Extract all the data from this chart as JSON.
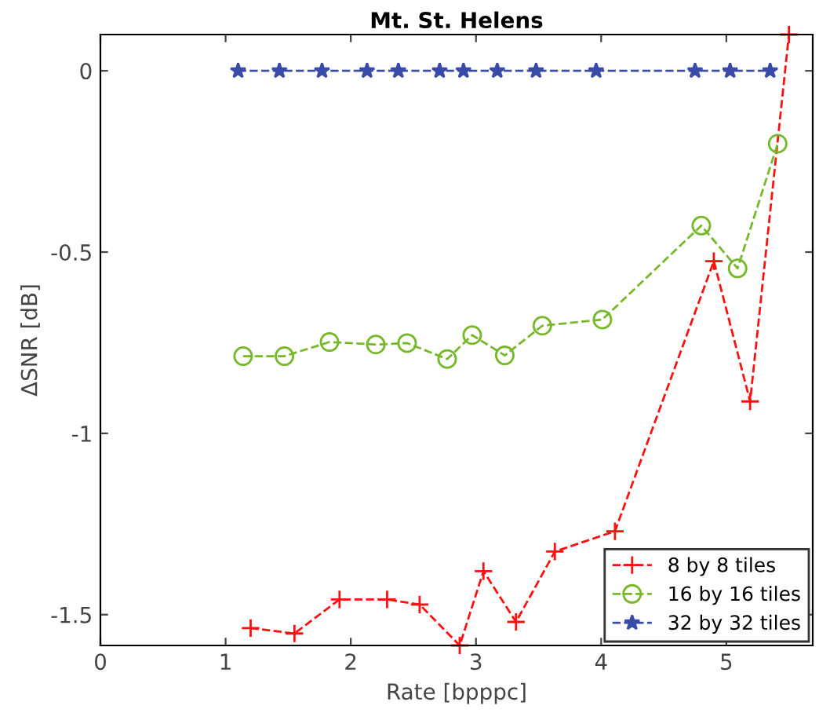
{
  "chart_data": {
    "type": "line",
    "title": "Mt. St. Helens",
    "xlabel": "Rate [bpppc]",
    "ylabel": "ΔSNR [dB]",
    "xlim": [
      0,
      5.69
    ],
    "ylim": [
      -1.585,
      0.1
    ],
    "xticks": [
      0,
      1,
      2,
      3,
      4,
      5
    ],
    "yticks": [
      -1.5,
      -1,
      -0.5,
      0
    ],
    "grid": false,
    "legend": "bottom right",
    "line_style": "dashed",
    "series": [
      {
        "name": "8 by 8 tiles",
        "color": "#ff1010",
        "marker": "cross",
        "x": [
          1.2,
          1.55,
          1.91,
          2.29,
          2.55,
          2.87,
          3.06,
          3.32,
          3.63,
          4.11,
          4.9,
          5.19,
          5.5
        ],
        "values": [
          -1.537,
          -1.552,
          -1.458,
          -1.458,
          -1.472,
          -1.585,
          -1.38,
          -1.52,
          -1.326,
          -1.27,
          -0.525,
          -0.912,
          0.1
        ]
      },
      {
        "name": "16 by 16 tiles",
        "color": "#77b82a",
        "marker": "circle",
        "x": [
          1.14,
          1.47,
          1.83,
          2.2,
          2.45,
          2.77,
          2.97,
          3.23,
          3.53,
          4.01,
          4.8,
          5.09,
          5.41
        ],
        "values": [
          -0.787,
          -0.787,
          -0.748,
          -0.755,
          -0.751,
          -0.795,
          -0.729,
          -0.785,
          -0.703,
          -0.686,
          -0.427,
          -0.545,
          -0.201
        ]
      },
      {
        "name": "32 by 32 tiles",
        "color": "#3a4aa8",
        "marker": "star",
        "x": [
          1.1,
          1.43,
          1.77,
          2.13,
          2.38,
          2.71,
          2.9,
          3.17,
          3.48,
          3.96,
          4.75,
          5.03,
          5.35
        ],
        "values": [
          0,
          0,
          0,
          0,
          0,
          0,
          0,
          0,
          0,
          0,
          0,
          0,
          0
        ]
      }
    ]
  }
}
